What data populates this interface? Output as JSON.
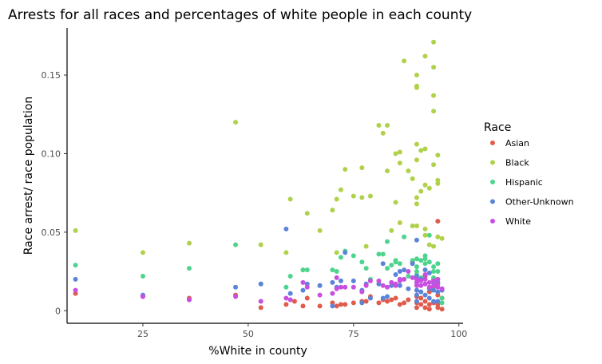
{
  "chart_data": {
    "type": "scatter",
    "title": "Arrests for all races and percentages of white people in each county",
    "xlabel": "%White in county",
    "ylabel": "Race arrest/ race population",
    "xlim": [
      7,
      101
    ],
    "ylim": [
      -0.008,
      0.18
    ],
    "x_ticks": [
      25,
      50,
      75,
      100
    ],
    "y_ticks": [
      0,
      0.05,
      0.1,
      0.15
    ],
    "x_tick_labels": [
      "25",
      "50",
      "75",
      "100"
    ],
    "y_tick_labels": [
      "0",
      "0.05",
      "0.10",
      "0.15"
    ],
    "grid": false,
    "legend": {
      "title": "Race",
      "position": "right"
    },
    "series": [
      {
        "name": "Asian",
        "color": "#e05b4b",
        "points": [
          [
            9,
            0.011
          ],
          [
            25,
            0.009
          ],
          [
            36,
            0.008
          ],
          [
            47,
            0.01
          ],
          [
            53,
            0.002
          ],
          [
            59,
            0.004
          ],
          [
            61,
            0.006
          ],
          [
            63,
            0.003
          ],
          [
            64,
            0.008
          ],
          [
            67,
            0.003
          ],
          [
            70,
            0.005
          ],
          [
            71,
            0.003
          ],
          [
            72,
            0.004
          ],
          [
            73,
            0.004
          ],
          [
            75,
            0.005
          ],
          [
            77,
            0.006
          ],
          [
            78,
            0.006
          ],
          [
            79,
            0.009
          ],
          [
            81,
            0.005
          ],
          [
            82,
            0.007
          ],
          [
            83,
            0.006
          ],
          [
            84,
            0.007
          ],
          [
            85,
            0.008
          ],
          [
            86,
            0.004
          ],
          [
            87,
            0.005
          ],
          [
            88,
            0.007
          ],
          [
            89,
            0.031
          ],
          [
            90,
            0.005
          ],
          [
            90,
            0.002
          ],
          [
            90,
            0.009
          ],
          [
            91,
            0.004
          ],
          [
            91,
            0.008
          ],
          [
            92,
            0.002
          ],
          [
            92,
            0.006
          ],
          [
            93,
            0.001
          ],
          [
            93,
            0.004
          ],
          [
            93,
            0.012
          ],
          [
            94,
            0.005
          ],
          [
            94,
            0.02
          ],
          [
            94,
            0.015
          ],
          [
            95,
            0.002
          ],
          [
            95,
            0.057
          ],
          [
            95,
            0.01
          ],
          [
            95,
            0.004
          ],
          [
            96,
            0.008
          ],
          [
            96,
            0.001
          ],
          [
            95,
            0.02
          ],
          [
            92,
            0.022
          ]
        ]
      },
      {
        "name": "Black",
        "color": "#b0d14a",
        "points": [
          [
            9,
            0.051
          ],
          [
            25,
            0.037
          ],
          [
            36,
            0.043
          ],
          [
            47,
            0.12
          ],
          [
            53,
            0.042
          ],
          [
            59,
            0.037
          ],
          [
            60,
            0.071
          ],
          [
            63,
            0.026
          ],
          [
            64,
            0.062
          ],
          [
            67,
            0.051
          ],
          [
            70,
            0.064
          ],
          [
            71,
            0.071
          ],
          [
            71,
            0.037
          ],
          [
            72,
            0.077
          ],
          [
            73,
            0.09
          ],
          [
            75,
            0.073
          ],
          [
            77,
            0.091
          ],
          [
            77,
            0.072
          ],
          [
            78,
            0.041
          ],
          [
            79,
            0.073
          ],
          [
            81,
            0.118
          ],
          [
            82,
            0.113
          ],
          [
            83,
            0.118
          ],
          [
            83,
            0.089
          ],
          [
            84,
            0.051
          ],
          [
            85,
            0.069
          ],
          [
            85,
            0.1
          ],
          [
            86,
            0.094
          ],
          [
            86,
            0.101
          ],
          [
            86,
            0.056
          ],
          [
            87,
            0.159
          ],
          [
            88,
            0.089
          ],
          [
            89,
            0.054
          ],
          [
            89,
            0.084
          ],
          [
            90,
            0.15
          ],
          [
            90,
            0.143
          ],
          [
            90,
            0.142
          ],
          [
            90,
            0.106
          ],
          [
            90,
            0.096
          ],
          [
            90,
            0.072
          ],
          [
            90,
            0.068
          ],
          [
            90,
            0.054
          ],
          [
            91,
            0.076
          ],
          [
            91,
            0.102
          ],
          [
            92,
            0.162
          ],
          [
            92,
            0.103
          ],
          [
            92,
            0.08
          ],
          [
            92,
            0.052
          ],
          [
            92,
            0.048
          ],
          [
            93,
            0.078
          ],
          [
            93,
            0.042
          ],
          [
            94,
            0.171
          ],
          [
            94,
            0.155
          ],
          [
            94,
            0.137
          ],
          [
            94,
            0.127
          ],
          [
            94,
            0.093
          ],
          [
            94,
            0.041
          ],
          [
            95,
            0.099
          ],
          [
            95,
            0.083
          ],
          [
            95,
            0.081
          ],
          [
            95,
            0.047
          ],
          [
            96,
            0.046
          ]
        ]
      },
      {
        "name": "Hispanic",
        "color": "#4fd48e",
        "points": [
          [
            9,
            0.029
          ],
          [
            25,
            0.022
          ],
          [
            36,
            0.027
          ],
          [
            47,
            0.042
          ],
          [
            53,
            0.017
          ],
          [
            59,
            0.015
          ],
          [
            60,
            0.022
          ],
          [
            63,
            0.026
          ],
          [
            64,
            0.026
          ],
          [
            67,
            0.016
          ],
          [
            70,
            0.026
          ],
          [
            71,
            0.025
          ],
          [
            72,
            0.034
          ],
          [
            73,
            0.038
          ],
          [
            75,
            0.035
          ],
          [
            77,
            0.031
          ],
          [
            78,
            0.027
          ],
          [
            79,
            0.02
          ],
          [
            81,
            0.036
          ],
          [
            82,
            0.036
          ],
          [
            83,
            0.044
          ],
          [
            83,
            0.027
          ],
          [
            84,
            0.029
          ],
          [
            85,
            0.032
          ],
          [
            85,
            0.031
          ],
          [
            86,
            0.03
          ],
          [
            86,
            0.02
          ],
          [
            87,
            0.047
          ],
          [
            88,
            0.022
          ],
          [
            89,
            0.032
          ],
          [
            90,
            0.033
          ],
          [
            90,
            0.028
          ],
          [
            90,
            0.025
          ],
          [
            90,
            0.023
          ],
          [
            91,
            0.032
          ],
          [
            91,
            0.021
          ],
          [
            92,
            0.035
          ],
          [
            92,
            0.033
          ],
          [
            92,
            0.03
          ],
          [
            93,
            0.031
          ],
          [
            93,
            0.048
          ],
          [
            94,
            0.028
          ],
          [
            94,
            0.025
          ],
          [
            94,
            0.021
          ],
          [
            95,
            0.03
          ],
          [
            95,
            0.025
          ],
          [
            95,
            0.018
          ],
          [
            96,
            0.008
          ],
          [
            96,
            0.005
          ]
        ]
      },
      {
        "name": "Other-Unknown",
        "color": "#5b84d9",
        "points": [
          [
            9,
            0.02
          ],
          [
            25,
            0.01
          ],
          [
            36,
            0.007
          ],
          [
            47,
            0.015
          ],
          [
            53,
            0.017
          ],
          [
            59,
            0.052
          ],
          [
            60,
            0.011
          ],
          [
            63,
            0.013
          ],
          [
            64,
            0.017
          ],
          [
            67,
            0.016
          ],
          [
            70,
            0.018
          ],
          [
            70,
            0.003
          ],
          [
            71,
            0.015
          ],
          [
            72,
            0.019
          ],
          [
            73,
            0.037
          ],
          [
            75,
            0.019
          ],
          [
            77,
            0.013
          ],
          [
            77,
            0.005
          ],
          [
            78,
            0.017
          ],
          [
            79,
            0.008
          ],
          [
            81,
            0.017
          ],
          [
            82,
            0.03
          ],
          [
            82,
            0.008
          ],
          [
            83,
            0.009
          ],
          [
            84,
            0.016
          ],
          [
            85,
            0.023
          ],
          [
            86,
            0.025
          ],
          [
            86,
            0.016
          ],
          [
            87,
            0.026
          ],
          [
            88,
            0.014
          ],
          [
            89,
            0.03
          ],
          [
            90,
            0.045
          ],
          [
            90,
            0.022
          ],
          [
            90,
            0.018
          ],
          [
            90,
            0.013
          ],
          [
            90,
            0.01
          ],
          [
            90,
            0.006
          ],
          [
            91,
            0.02
          ],
          [
            91,
            0.012
          ],
          [
            92,
            0.026
          ],
          [
            92,
            0.017
          ],
          [
            92,
            0.01
          ],
          [
            93,
            0.024
          ],
          [
            93,
            0.014
          ],
          [
            93,
            0.008
          ],
          [
            94,
            0.018
          ],
          [
            94,
            0.013
          ],
          [
            94,
            0.006
          ],
          [
            95,
            0.018
          ],
          [
            95,
            0.012
          ],
          [
            95,
            0.006
          ],
          [
            96,
            0.013
          ]
        ]
      },
      {
        "name": "White",
        "color": "#c84fe0",
        "points": [
          [
            9,
            0.013
          ],
          [
            25,
            0.009
          ],
          [
            36,
            0.007
          ],
          [
            47,
            0.009
          ],
          [
            53,
            0.006
          ],
          [
            59,
            0.008
          ],
          [
            60,
            0.007
          ],
          [
            63,
            0.018
          ],
          [
            64,
            0.015
          ],
          [
            67,
            0.01
          ],
          [
            70,
            0.011
          ],
          [
            71,
            0.014
          ],
          [
            71,
            0.021
          ],
          [
            72,
            0.015
          ],
          [
            73,
            0.015
          ],
          [
            75,
            0.015
          ],
          [
            77,
            0.012
          ],
          [
            78,
            0.016
          ],
          [
            79,
            0.019
          ],
          [
            81,
            0.019
          ],
          [
            82,
            0.016
          ],
          [
            83,
            0.015
          ],
          [
            84,
            0.018
          ],
          [
            85,
            0.017
          ],
          [
            85,
            0.016
          ],
          [
            86,
            0.019
          ],
          [
            86,
            0.02
          ],
          [
            87,
            0.02
          ],
          [
            88,
            0.025
          ],
          [
            89,
            0.021
          ],
          [
            90,
            0.016
          ],
          [
            90,
            0.018
          ],
          [
            90,
            0.02
          ],
          [
            91,
            0.016
          ],
          [
            91,
            0.019
          ],
          [
            92,
            0.023
          ],
          [
            92,
            0.02
          ],
          [
            92,
            0.017
          ],
          [
            93,
            0.015
          ],
          [
            93,
            0.018
          ],
          [
            94,
            0.016
          ],
          [
            94,
            0.019
          ],
          [
            95,
            0.017
          ],
          [
            95,
            0.02
          ],
          [
            95,
            0.015
          ],
          [
            96,
            0.014
          ]
        ]
      }
    ]
  }
}
